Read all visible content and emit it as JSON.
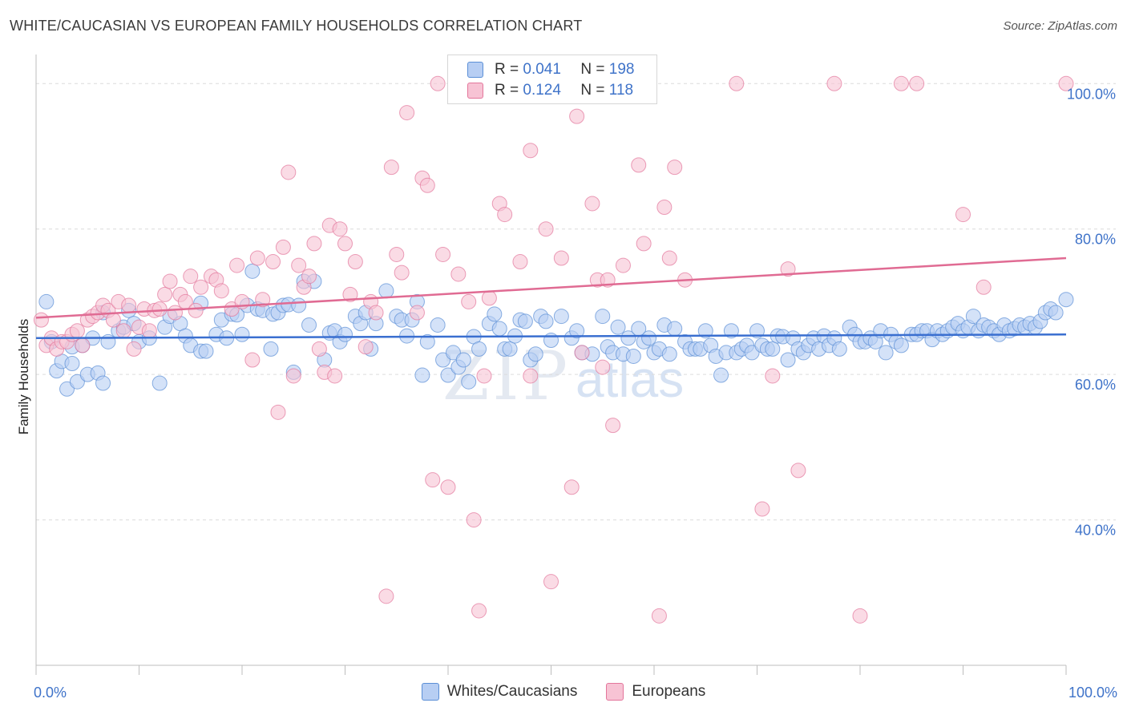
{
  "title": "WHITE/CAUCASIAN VS EUROPEAN FAMILY HOUSEHOLDS CORRELATION CHART",
  "source": "Source: ZipAtlas.com",
  "watermark": {
    "zip": "ZIP",
    "atlas": "atlas"
  },
  "legend": {
    "r_label": "R =",
    "n_label": "N =",
    "rows": [
      {
        "r": "0.041",
        "n": "198",
        "color": "#b7cef3"
      },
      {
        "r": "0.124",
        "n": "118",
        "color": "#f7c3d4"
      }
    ]
  },
  "bottom_legend": [
    {
      "label": "Whites/Caucasians",
      "color": "#b7cef3"
    },
    {
      "label": "Europeans",
      "color": "#f7c3d4"
    }
  ],
  "chart_data": {
    "type": "scatter",
    "title": "WHITE/CAUCASIAN VS EUROPEAN FAMILY HOUSEHOLDS CORRELATION CHART",
    "xlabel": "",
    "ylabel": "Family Households",
    "xlim": [
      0,
      100
    ],
    "ylim": [
      20,
      104
    ],
    "x_tick_labels": [
      "0.0%",
      "100.0%"
    ],
    "y_ticks": [
      40,
      60,
      80,
      100
    ],
    "y_tick_labels": [
      "40.0%",
      "60.0%",
      "80.0%",
      "100.0%"
    ],
    "grid": "horizontal dashed",
    "legend_position": "top-center",
    "series": [
      {
        "name": "Whites/Caucasians",
        "color": "#5b8fd6",
        "fill": "#b7cef3",
        "trend": [
          [
            0,
            65.0
          ],
          [
            100,
            65.5
          ]
        ],
        "points": [
          [
            1,
            70
          ],
          [
            1.5,
            64.5
          ],
          [
            2,
            60.5
          ],
          [
            2.5,
            61.8
          ],
          [
            3,
            58
          ],
          [
            3.5,
            63.8
          ],
          [
            3.5,
            61.5
          ],
          [
            4,
            59
          ],
          [
            4.5,
            64
          ],
          [
            5,
            60
          ],
          [
            5.5,
            65
          ],
          [
            6,
            60.2
          ],
          [
            6.5,
            68.5
          ],
          [
            6.5,
            58.8
          ],
          [
            7,
            64.5
          ],
          [
            8,
            66
          ],
          [
            8.5,
            66.5
          ],
          [
            9,
            68.8
          ],
          [
            9.5,
            67
          ],
          [
            10,
            64.5
          ],
          [
            11,
            65
          ],
          [
            12,
            58.8
          ],
          [
            12.5,
            66.5
          ],
          [
            13,
            68
          ],
          [
            14,
            67
          ],
          [
            14.5,
            65.3
          ],
          [
            15,
            64
          ],
          [
            16,
            63.2
          ],
          [
            16,
            69.8
          ],
          [
            16.5,
            63.2
          ],
          [
            17.5,
            65.5
          ],
          [
            18,
            67.5
          ],
          [
            18.5,
            65
          ],
          [
            19,
            68.3
          ],
          [
            19.5,
            68.2
          ],
          [
            20,
            65.5
          ],
          [
            20.5,
            69.5
          ],
          [
            21,
            74.2
          ],
          [
            21.5,
            69
          ],
          [
            22,
            68.8
          ],
          [
            22.8,
            63.5
          ],
          [
            23,
            68.3
          ],
          [
            23.5,
            68.5
          ],
          [
            24,
            69.5
          ],
          [
            24.5,
            69.6
          ],
          [
            25,
            60.3
          ],
          [
            25.5,
            69.5
          ],
          [
            26,
            72.8
          ],
          [
            26.5,
            66.8
          ],
          [
            27,
            72.8
          ],
          [
            28,
            62
          ],
          [
            28.5,
            65.7
          ],
          [
            29,
            66
          ],
          [
            29.5,
            64.5
          ],
          [
            30,
            65.5
          ],
          [
            31,
            68
          ],
          [
            31.5,
            67
          ],
          [
            32,
            68.5
          ],
          [
            32.5,
            63.5
          ],
          [
            33,
            67
          ],
          [
            34,
            71.5
          ],
          [
            35,
            68
          ],
          [
            35.5,
            67.5
          ],
          [
            36,
            65.3
          ],
          [
            36.5,
            67.5
          ],
          [
            37,
            70
          ],
          [
            37.5,
            59.9
          ],
          [
            38,
            64.5
          ],
          [
            39,
            66.8
          ],
          [
            39.5,
            62
          ],
          [
            40,
            59.9
          ],
          [
            40.5,
            63
          ],
          [
            41,
            61
          ],
          [
            41.5,
            62
          ],
          [
            42,
            59
          ],
          [
            42.5,
            65.2
          ],
          [
            43,
            63.5
          ],
          [
            44,
            67
          ],
          [
            44.5,
            68.3
          ],
          [
            45,
            66.3
          ],
          [
            45.5,
            63.5
          ],
          [
            46,
            63.5
          ],
          [
            46.5,
            65.3
          ],
          [
            47,
            67.5
          ],
          [
            47.5,
            67.3
          ],
          [
            48,
            62
          ],
          [
            48.5,
            62.8
          ],
          [
            49,
            68
          ],
          [
            49.5,
            67.3
          ],
          [
            50,
            64.7
          ],
          [
            51,
            68
          ],
          [
            52,
            65
          ],
          [
            52.5,
            66
          ],
          [
            53,
            63
          ],
          [
            54,
            62.8
          ],
          [
            55,
            68
          ],
          [
            55.5,
            63.8
          ],
          [
            56,
            63
          ],
          [
            56.5,
            66.5
          ],
          [
            57,
            62.8
          ],
          [
            57.5,
            65
          ],
          [
            58,
            62.5
          ],
          [
            58.5,
            66.3
          ],
          [
            59,
            64.5
          ],
          [
            59.5,
            65
          ],
          [
            60,
            63
          ],
          [
            60.5,
            63.5
          ],
          [
            61,
            66.8
          ],
          [
            61.5,
            62.8
          ],
          [
            62,
            66.3
          ],
          [
            63,
            64.5
          ],
          [
            63.5,
            63.5
          ],
          [
            64,
            63.5
          ],
          [
            64.5,
            63.5
          ],
          [
            65,
            66
          ],
          [
            65.5,
            64
          ],
          [
            66,
            62.5
          ],
          [
            66.5,
            59.9
          ],
          [
            67,
            63
          ],
          [
            67.5,
            66
          ],
          [
            68,
            63
          ],
          [
            68.5,
            63.5
          ],
          [
            69,
            64
          ],
          [
            69.5,
            63
          ],
          [
            70,
            66
          ],
          [
            70.5,
            64
          ],
          [
            71,
            63.5
          ],
          [
            71.5,
            63.5
          ],
          [
            72,
            65.3
          ],
          [
            72.5,
            65.2
          ],
          [
            73,
            62
          ],
          [
            73.5,
            65
          ],
          [
            74,
            63.5
          ],
          [
            74.5,
            63
          ],
          [
            75,
            64
          ],
          [
            75.5,
            65
          ],
          [
            76,
            63.5
          ],
          [
            76.5,
            65.3
          ],
          [
            77,
            64
          ],
          [
            77.5,
            65
          ],
          [
            78,
            63.5
          ],
          [
            79,
            66.5
          ],
          [
            79.5,
            65.5
          ],
          [
            80,
            64.5
          ],
          [
            80.5,
            64.5
          ],
          [
            81,
            65
          ],
          [
            81.5,
            64.5
          ],
          [
            82,
            66
          ],
          [
            82.5,
            63
          ],
          [
            83,
            65.5
          ],
          [
            83.5,
            64.5
          ],
          [
            84,
            64
          ],
          [
            85,
            65.5
          ],
          [
            85.5,
            65.5
          ],
          [
            86,
            66
          ],
          [
            86.5,
            66
          ],
          [
            87,
            64.8
          ],
          [
            87.5,
            66
          ],
          [
            88,
            65.5
          ],
          [
            88.5,
            66
          ],
          [
            89,
            66.5
          ],
          [
            89.5,
            67
          ],
          [
            90,
            66
          ],
          [
            90.5,
            66.5
          ],
          [
            91,
            68
          ],
          [
            91.5,
            66
          ],
          [
            92,
            66.8
          ],
          [
            92.5,
            66.5
          ],
          [
            93,
            66
          ],
          [
            93.5,
            65.5
          ],
          [
            94,
            66.8
          ],
          [
            94.5,
            66
          ],
          [
            95,
            66.3
          ],
          [
            95.5,
            66.8
          ],
          [
            96,
            66.5
          ],
          [
            96.5,
            67
          ],
          [
            97,
            66.5
          ],
          [
            97.5,
            67.3
          ],
          [
            98,
            68.5
          ],
          [
            98.5,
            69
          ],
          [
            99,
            68.5
          ],
          [
            100,
            70.3
          ]
        ]
      },
      {
        "name": "Europeans",
        "color": "#e3769b",
        "fill": "#f7c3d4",
        "trend": [
          [
            0,
            67.8
          ],
          [
            100,
            76.0
          ]
        ],
        "points": [
          [
            0.5,
            67.5
          ],
          [
            1,
            64
          ],
          [
            1.5,
            65
          ],
          [
            2,
            63.5
          ],
          [
            2.5,
            64.5
          ],
          [
            3,
            64.5
          ],
          [
            3.5,
            65.5
          ],
          [
            4,
            66
          ],
          [
            4.5,
            64
          ],
          [
            5,
            67.5
          ],
          [
            5.5,
            68
          ],
          [
            6,
            68.5
          ],
          [
            6.5,
            69.5
          ],
          [
            7,
            68.8
          ],
          [
            7.5,
            67.5
          ],
          [
            8,
            70
          ],
          [
            8.5,
            66
          ],
          [
            9,
            69.5
          ],
          [
            9.5,
            63.5
          ],
          [
            10,
            66.5
          ],
          [
            10.5,
            69
          ],
          [
            11,
            66
          ],
          [
            11.5,
            68.8
          ],
          [
            12,
            69
          ],
          [
            12.5,
            71
          ],
          [
            13,
            72.8
          ],
          [
            13.5,
            68.5
          ],
          [
            14,
            71
          ],
          [
            14.5,
            70
          ],
          [
            15,
            73.5
          ],
          [
            15.5,
            68.8
          ],
          [
            16,
            72
          ],
          [
            17,
            73.5
          ],
          [
            17.5,
            73
          ],
          [
            18,
            71.5
          ],
          [
            19,
            69
          ],
          [
            19.5,
            75
          ],
          [
            20,
            70
          ],
          [
            21,
            62
          ],
          [
            21.5,
            76
          ],
          [
            22,
            70.3
          ],
          [
            23,
            75.5
          ],
          [
            23.5,
            54.8
          ],
          [
            24,
            77.5
          ],
          [
            24.5,
            87.8
          ],
          [
            25,
            59.8
          ],
          [
            25.5,
            75
          ],
          [
            26,
            72
          ],
          [
            26.5,
            73.5
          ],
          [
            27,
            78
          ],
          [
            27.5,
            63.5
          ],
          [
            28,
            60.3
          ],
          [
            28.5,
            80.5
          ],
          [
            29,
            59.8
          ],
          [
            29.5,
            80
          ],
          [
            30,
            78
          ],
          [
            30.5,
            71
          ],
          [
            31,
            75.5
          ],
          [
            32,
            63.8
          ],
          [
            32.5,
            70
          ],
          [
            33,
            68.5
          ],
          [
            34,
            29.5
          ],
          [
            34.5,
            88.5
          ],
          [
            35,
            76.5
          ],
          [
            35.5,
            74
          ],
          [
            36,
            96
          ],
          [
            37,
            68.5
          ],
          [
            37.5,
            87
          ],
          [
            38,
            86
          ],
          [
            38.5,
            45.5
          ],
          [
            39,
            100
          ],
          [
            39.5,
            76.5
          ],
          [
            40,
            44.5
          ],
          [
            41,
            73.8
          ],
          [
            42,
            70
          ],
          [
            42.5,
            40
          ],
          [
            43,
            27.5
          ],
          [
            43.5,
            59.8
          ],
          [
            44,
            70.5
          ],
          [
            45,
            83.5
          ],
          [
            45.5,
            82
          ],
          [
            47,
            75.5
          ],
          [
            48,
            90.8
          ],
          [
            48,
            59.8
          ],
          [
            49.5,
            80
          ],
          [
            50,
            31.5
          ],
          [
            51,
            76
          ],
          [
            52,
            44.5
          ],
          [
            52.5,
            95.5
          ],
          [
            53,
            63
          ],
          [
            54,
            83.5
          ],
          [
            54.5,
            73
          ],
          [
            55,
            61
          ],
          [
            56,
            53
          ],
          [
            55.5,
            73
          ],
          [
            57,
            75
          ],
          [
            58.5,
            88.8
          ],
          [
            59,
            78
          ],
          [
            60.5,
            26.8
          ],
          [
            61,
            83
          ],
          [
            61.5,
            76
          ],
          [
            62,
            88.5
          ],
          [
            63,
            73
          ],
          [
            68,
            100
          ],
          [
            70.5,
            41.5
          ],
          [
            71.5,
            59.8
          ],
          [
            73,
            74.5
          ],
          [
            74,
            46.8
          ],
          [
            77.5,
            100
          ],
          [
            80,
            26.8
          ],
          [
            84,
            100
          ],
          [
            85.5,
            100
          ],
          [
            90,
            82
          ],
          [
            92,
            72
          ],
          [
            100,
            100
          ]
        ]
      }
    ]
  }
}
